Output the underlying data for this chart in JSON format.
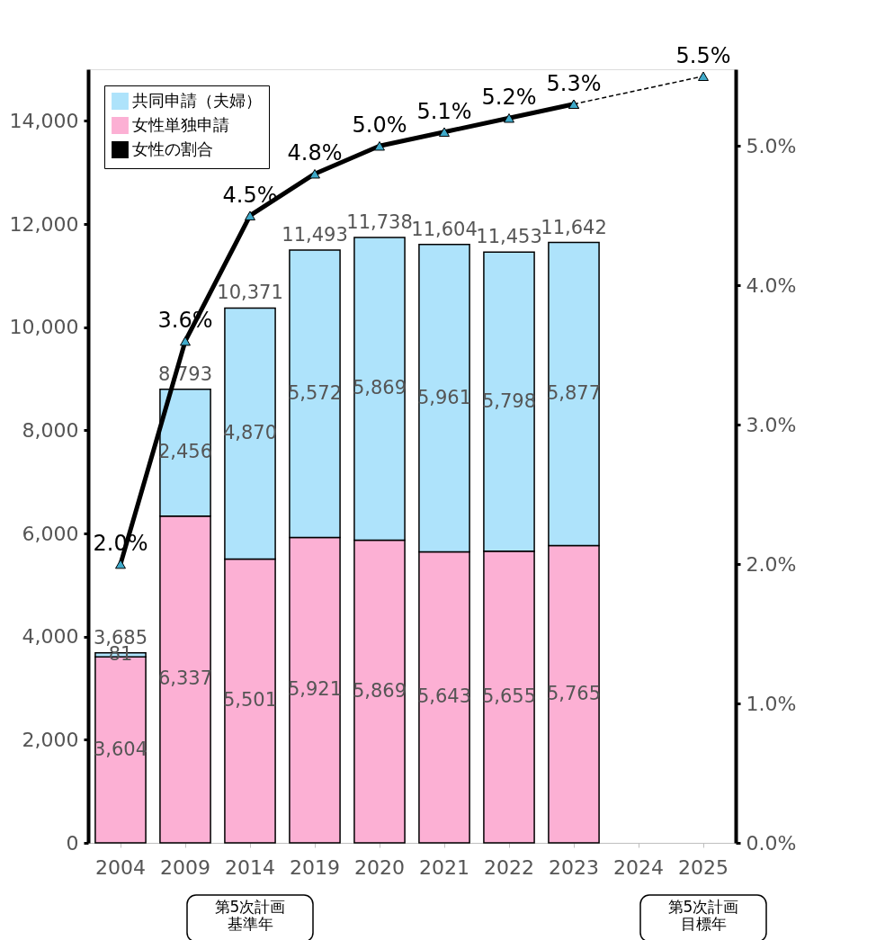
{
  "chart_data": {
    "type": "bar",
    "stacked": true,
    "categories": [
      "2004",
      "2009",
      "2014",
      "2019",
      "2020",
      "2021",
      "2022",
      "2023",
      "2024",
      "2025"
    ],
    "series": [
      {
        "name": "女性単独申請",
        "color": "#fcb0d4",
        "values": [
          3604,
          6337,
          5501,
          5921,
          5869,
          5643,
          5655,
          5765,
          null,
          null
        ],
        "value_labels": [
          "3,604",
          "6,337",
          "5,501",
          "5,921",
          "5,869",
          "5,643",
          "5,655",
          "5,765",
          null,
          null
        ]
      },
      {
        "name": "共同申請（夫婦）",
        "color": "#aee3fb",
        "values": [
          81,
          2456,
          4870,
          5572,
          5869,
          5961,
          5798,
          5877,
          null,
          null
        ],
        "value_labels": [
          "81",
          "2,456",
          "4,870",
          "5,572",
          "5,869",
          "5,961",
          "5,798",
          "5,877",
          null,
          null
        ]
      },
      {
        "name": "女性の割合",
        "type": "line",
        "axis": "y2",
        "color": "#000000",
        "marker": "triangle",
        "line_style": "solid",
        "values": [
          2.0,
          3.6,
          4.5,
          4.8,
          5.0,
          5.1,
          5.2,
          5.3,
          null,
          null
        ],
        "value_labels": [
          "2.0%",
          "3.6%",
          "4.5%",
          "4.8%",
          "5.0%",
          "5.1%",
          "5.2%",
          "5.3%",
          null,
          null
        ]
      },
      {
        "type": "line",
        "axis": "y2",
        "color": "#000000",
        "marker": "triangle",
        "line_style": "dashed",
        "values": [
          null,
          null,
          null,
          null,
          null,
          null,
          null,
          5.3,
          null,
          5.5
        ],
        "value_labels": [
          null,
          null,
          null,
          null,
          null,
          null,
          null,
          null,
          null,
          "5.5%"
        ]
      }
    ],
    "totals": [
      "3,685",
      "8,793",
      "10,371",
      "11,493",
      "11,738",
      "11,604",
      "11,453",
      "11,642",
      null,
      null
    ],
    "ylim": [
      0,
      15000
    ],
    "yticks": [
      0,
      {
        "value": 2000,
        "label": "2,000"
      },
      {
        "value": 4000,
        "label": "4,000"
      },
      {
        "value": 6000,
        "label": "6,000"
      },
      {
        "value": 8000,
        "label": "8,000"
      },
      {
        "value": 10000,
        "label": "10,000"
      },
      {
        "value": 12000,
        "label": "12,000"
      },
      {
        "value": 14000,
        "label": "14,000"
      }
    ],
    "y2lim": [
      0,
      5.55
    ],
    "y2ticks": [
      {
        "value": 0,
        "label": "0.0%"
      },
      {
        "value": 1,
        "label": "1.0%"
      },
      {
        "value": 2,
        "label": "2.0%"
      },
      {
        "value": 3,
        "label": "3.0%"
      },
      {
        "value": 4,
        "label": "4.0%"
      },
      {
        "value": 5,
        "label": "5.0%"
      }
    ],
    "legend": "top left",
    "grid": false,
    "annotations": [
      "第5次計画基準年",
      "第5次計画目標年"
    ]
  }
}
